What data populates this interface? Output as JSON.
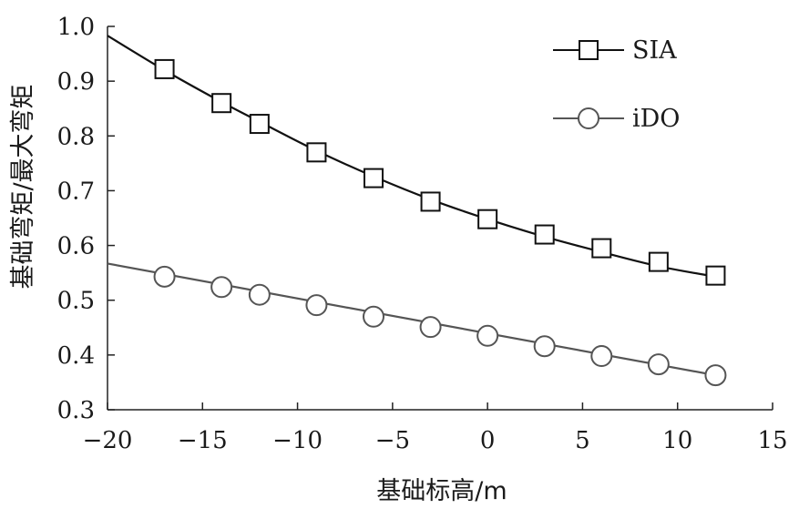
{
  "chart_data": {
    "type": "line",
    "xlabel": "基础标高/m",
    "ylabel": "基础弯矩/最大弯矩",
    "xlim": [
      -20,
      15
    ],
    "ylim": [
      0.3,
      1.0
    ],
    "x_ticks": [
      "−20",
      "−15",
      "−10",
      "−5",
      "0",
      "5",
      "10",
      "15"
    ],
    "y_ticks": [
      "0.3",
      "0.4",
      "0.5",
      "0.6",
      "0.7",
      "0.8",
      "0.9",
      "1.0"
    ],
    "legend_position": "top-right",
    "series": [
      {
        "name": "SIA",
        "marker": "square",
        "color": "#111111",
        "curve": [
          [
            -20,
            0.983
          ],
          [
            -17,
            0.92
          ],
          [
            -14,
            0.862
          ],
          [
            -12,
            0.826
          ],
          [
            -9,
            0.773
          ],
          [
            -6,
            0.726
          ],
          [
            -3,
            0.684
          ],
          [
            0,
            0.648
          ],
          [
            3,
            0.616
          ],
          [
            6,
            0.588
          ],
          [
            9,
            0.562
          ],
          [
            12,
            0.543
          ]
        ],
        "points": [
          [
            -17,
            0.922
          ],
          [
            -14,
            0.86
          ],
          [
            -12,
            0.822
          ],
          [
            -9,
            0.77
          ],
          [
            -6,
            0.723
          ],
          [
            -3,
            0.68
          ],
          [
            0,
            0.648
          ],
          [
            3,
            0.62
          ],
          [
            6,
            0.595
          ],
          [
            9,
            0.57
          ],
          [
            12,
            0.545
          ]
        ]
      },
      {
        "name": "iDO",
        "marker": "circle",
        "color": "#555555",
        "curve": [
          [
            -20,
            0.567
          ],
          [
            12,
            0.363
          ]
        ],
        "points": [
          [
            -17,
            0.543
          ],
          [
            -14,
            0.524
          ],
          [
            -12,
            0.51
          ],
          [
            -9,
            0.491
          ],
          [
            -6,
            0.47
          ],
          [
            -3,
            0.451
          ],
          [
            0,
            0.435
          ],
          [
            3,
            0.416
          ],
          [
            6,
            0.398
          ],
          [
            9,
            0.383
          ],
          [
            12,
            0.363
          ]
        ]
      }
    ]
  }
}
